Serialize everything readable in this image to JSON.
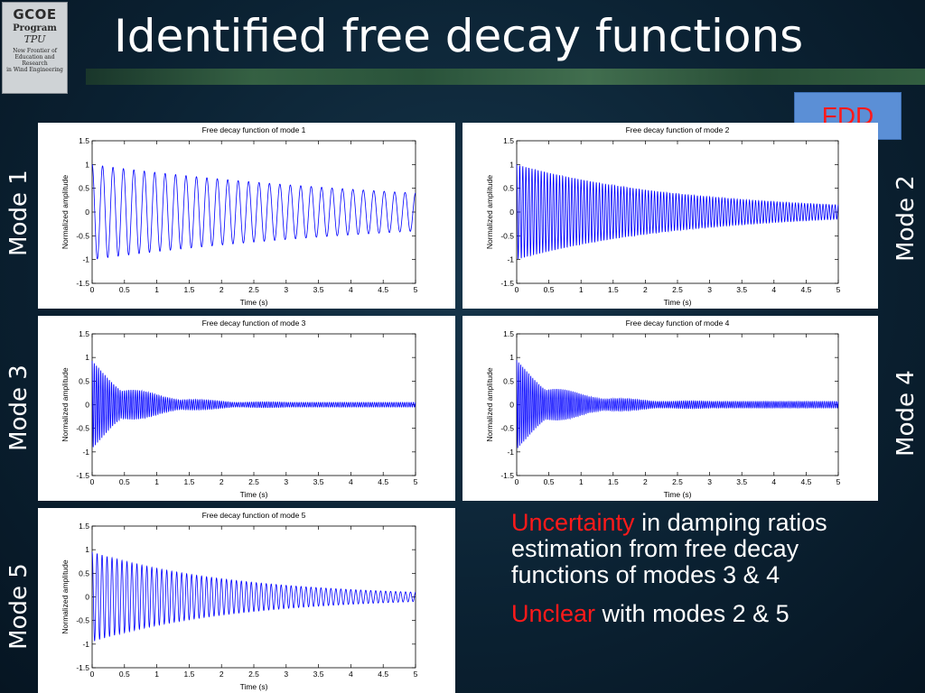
{
  "slide": {
    "title": "Identified free decay functions",
    "fdd_label": "FDD",
    "logo": {
      "top": "GCOE",
      "middle": "Program",
      "tpu": "TPU",
      "subtitle_lines": [
        "New Frontier of",
        "Education and Research",
        "in Wind Engineering"
      ]
    },
    "mode_labels": [
      "Mode 1",
      "Mode 2",
      "Mode 3",
      "Mode 4",
      "Mode 5"
    ],
    "notes": [
      {
        "highlight": "Uncertainty",
        "rest": " in damping ratios estimation from free decay functions of modes 3 & 4"
      },
      {
        "highlight": "Unclear",
        "rest": " with modes 2 & 5"
      }
    ],
    "colors": {
      "highlight": "#ff1a1a",
      "line": "#0000ff",
      "fdd_box": "#5b8fd6"
    }
  },
  "chart_data": [
    {
      "type": "line",
      "title": "Free decay function of mode 1",
      "xlabel": "Time (s)",
      "ylabel": "Normalized amplitude",
      "xlim": [
        0,
        5
      ],
      "ylim": [
        -1.5,
        1.5
      ],
      "xticks": [
        "0",
        "0.5",
        "1",
        "1.5",
        "2",
        "2.5",
        "3",
        "3.5",
        "4",
        "4.5",
        "5"
      ],
      "yticks": [
        "-1.5",
        "-1",
        "-0.5",
        "0",
        "0.5",
        "1",
        "1.5"
      ],
      "series": [
        {
          "kind": "damped_sinusoid",
          "frequency_hz": 6.2,
          "initial_amplitude": 1.0,
          "amplitude_at_5s": 0.4
        }
      ]
    },
    {
      "type": "line",
      "title": "Free decay function of mode 2",
      "xlabel": "Time (s)",
      "ylabel": "Normalized amplitude",
      "xlim": [
        0,
        5
      ],
      "ylim": [
        -1.5,
        1.5
      ],
      "xticks": [
        "0",
        "0.5",
        "1",
        "1.5",
        "2",
        "2.5",
        "3",
        "3.5",
        "4",
        "4.5",
        "5"
      ],
      "yticks": [
        "-1.5",
        "-1",
        "-0.5",
        "0",
        "0.5",
        "1",
        "1.5"
      ],
      "series": [
        {
          "kind": "damped_sinusoid",
          "frequency_hz": 21,
          "initial_amplitude": 1.0,
          "amplitude_at_5s": 0.15
        }
      ]
    },
    {
      "type": "line",
      "title": "Free decay function of mode 3",
      "xlabel": "Time (s)",
      "ylabel": "Normalized amplitude",
      "xlim": [
        0,
        5
      ],
      "ylim": [
        -1.5,
        1.5
      ],
      "xticks": [
        "0",
        "0.5",
        "1",
        "1.5",
        "2",
        "2.5",
        "3",
        "3.5",
        "4",
        "4.5",
        "5"
      ],
      "yticks": [
        "-1.5",
        "-1",
        "-0.5",
        "0",
        "0.5",
        "1",
        "1.5"
      ],
      "series": [
        {
          "kind": "beating_decay",
          "frequency_hz": 30,
          "initial_amplitude": 0.9,
          "amplitude_at_5s": 0.05
        }
      ]
    },
    {
      "type": "line",
      "title": "Free decay function of mode 4",
      "xlabel": "Time (s)",
      "ylabel": "Normalized amplitude",
      "xlim": [
        0,
        5
      ],
      "ylim": [
        -1.5,
        1.5
      ],
      "xticks": [
        "0",
        "0.5",
        "1",
        "1.5",
        "2",
        "2.5",
        "3",
        "3.5",
        "4",
        "4.5",
        "5"
      ],
      "yticks": [
        "-1.5",
        "-1",
        "-0.5",
        "0",
        "0.5",
        "1",
        "1.5"
      ],
      "series": [
        {
          "kind": "beating_decay",
          "frequency_hz": 32,
          "initial_amplitude": 0.9,
          "amplitude_at_5s": 0.07
        }
      ]
    },
    {
      "type": "line",
      "title": "Free decay function of mode 5",
      "xlabel": "Time (s)",
      "ylabel": "Normalized amplitude",
      "xlim": [
        0,
        5
      ],
      "ylim": [
        -1.5,
        1.5
      ],
      "xticks": [
        "0",
        "0.5",
        "1",
        "1.5",
        "2",
        "2.5",
        "3",
        "3.5",
        "4",
        "4.5",
        "5"
      ],
      "yticks": [
        "-1.5",
        "-1",
        "-0.5",
        "0",
        "0.5",
        "1",
        "1.5"
      ],
      "series": [
        {
          "kind": "damped_sinusoid",
          "frequency_hz": 13,
          "initial_amplitude": 0.95,
          "amplitude_at_5s": 0.1
        }
      ]
    }
  ]
}
